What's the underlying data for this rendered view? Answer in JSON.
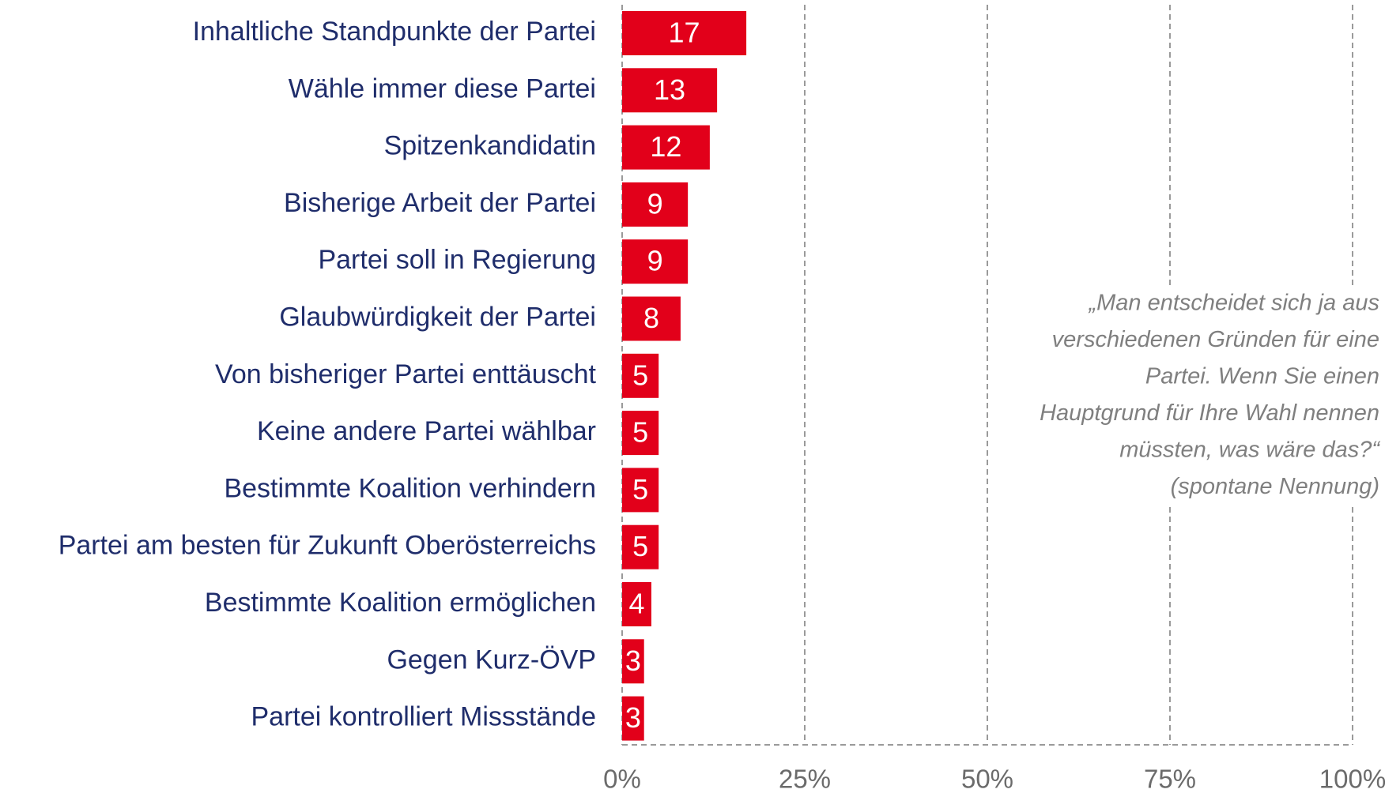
{
  "chart_data": {
    "type": "bar",
    "orientation": "horizontal",
    "categories": [
      "Inhaltliche Standpunkte der Partei",
      "Wähle immer diese Partei",
      "Spitzenkandidatin",
      "Bisherige Arbeit der Partei",
      "Partei soll in Regierung",
      "Glaubwürdigkeit der Partei",
      "Von bisheriger Partei enttäuscht",
      "Keine andere Partei wählbar",
      "Bestimmte Koalition verhindern",
      "Partei am besten für Zukunft Oberösterreichs",
      "Bestimmte Koalition ermöglichen",
      "Gegen Kurz-ÖVP",
      "Partei kontrolliert Missstände"
    ],
    "values": [
      17,
      13,
      12,
      9,
      9,
      8,
      5,
      5,
      5,
      5,
      4,
      3,
      3
    ],
    "color": "#e2001a",
    "xlim": [
      0,
      100
    ],
    "xticks": [
      {
        "value": 0,
        "label": "0%"
      },
      {
        "value": 25,
        "label": "25%"
      },
      {
        "value": 50,
        "label": "50%"
      },
      {
        "value": 75,
        "label": "75%"
      },
      {
        "value": 100,
        "label": "100%"
      }
    ],
    "grid": true,
    "annotation": [
      "„Man entscheidet sich ja aus",
      "verschiedenen Gründen für eine",
      "Partei. Wenn Sie einen",
      "Hauptgrund für Ihre Wahl nennen",
      "müssten, was wäre das?“",
      "(spontane Nennung)"
    ]
  }
}
